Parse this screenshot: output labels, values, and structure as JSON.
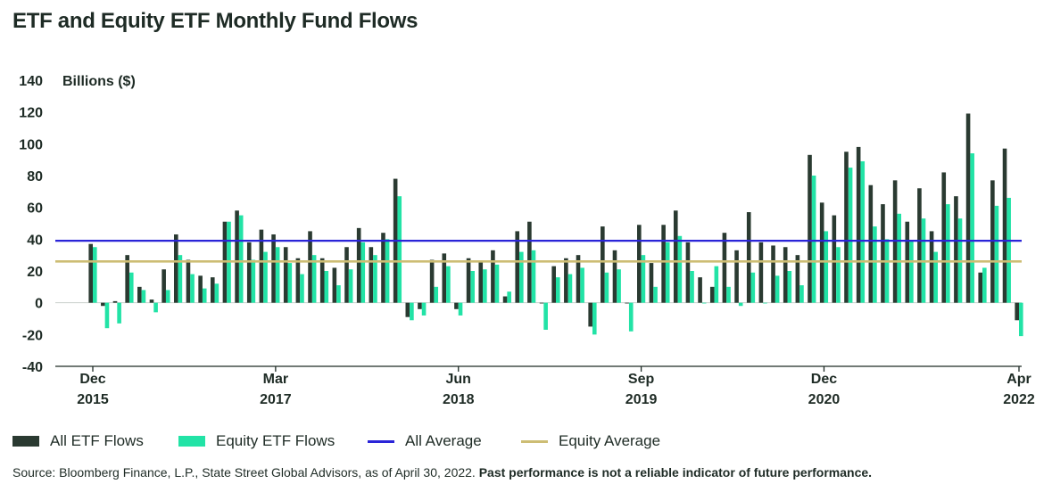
{
  "title": "ETF and Equity ETF Monthly Fund Flows",
  "footer": {
    "source": "Source: Bloomberg Finance, L.P., State Street Global Advisors, as of April 30, 2022.",
    "disclaimer": "Past performance is not a reliable indicator of future performance."
  },
  "colors": {
    "all_etf": "#2a3a31",
    "equity_etf": "#22e3a6",
    "all_average": "#2a24d8",
    "equity_average": "#cdbd74",
    "axis": "#1e2b25"
  },
  "chart_data": {
    "type": "bar",
    "ylabel": "Billions ($)",
    "ylim": [
      -40,
      140
    ],
    "yticks": [
      140,
      120,
      100,
      80,
      60,
      40,
      20,
      0,
      -20,
      -40
    ],
    "x_tick_labels": [
      {
        "month": "Dec",
        "year": "2015",
        "index": 0
      },
      {
        "month": "Mar",
        "year": "2017",
        "index": 15
      },
      {
        "month": "Jun",
        "year": "2018",
        "index": 30
      },
      {
        "month": "Sep",
        "year": "2019",
        "index": 45
      },
      {
        "month": "Dec",
        "year": "2020",
        "index": 60
      },
      {
        "month": "Apr",
        "year": "2022",
        "index": 76
      }
    ],
    "x_start": "Dec 2015",
    "x_end": "Apr 2022",
    "series": [
      {
        "name": "All ETF Flows",
        "values": [
          37,
          -2,
          1,
          30,
          10,
          2,
          21,
          43,
          27,
          17,
          16,
          51,
          58,
          38,
          46,
          43,
          35,
          28,
          45,
          28,
          22,
          35,
          47,
          35,
          44,
          78,
          -9,
          -4,
          27,
          31,
          -4,
          28,
          26,
          33,
          4,
          45,
          51,
          0,
          23,
          28,
          30,
          -15,
          48,
          33,
          0,
          49,
          25,
          49,
          58,
          38,
          16,
          10,
          44,
          33,
          57,
          38,
          36,
          35,
          30,
          93,
          63,
          55,
          95,
          98,
          74,
          62,
          77,
          51,
          72,
          45,
          82,
          67,
          119,
          19,
          77,
          97,
          -11
        ]
      },
      {
        "name": "Equity ETF Flows",
        "values": [
          35,
          -16,
          -13,
          19,
          8,
          -6,
          8,
          30,
          18,
          9,
          12,
          51,
          55,
          27,
          32,
          35,
          25,
          18,
          30,
          20,
          11,
          21,
          38,
          30,
          40,
          67,
          -11,
          -8,
          10,
          23,
          -8,
          20,
          21,
          24,
          7,
          32,
          33,
          -17,
          16,
          18,
          22,
          -20,
          19,
          21,
          -18,
          30,
          10,
          38,
          42,
          20,
          0,
          23,
          10,
          -2,
          19,
          0,
          17,
          20,
          11,
          80,
          45,
          35,
          85,
          89,
          48,
          40,
          56,
          39,
          53,
          32,
          62,
          53,
          94,
          22,
          61,
          66,
          -21
        ]
      },
      {
        "name": "All Average",
        "value": 39
      },
      {
        "name": "Equity Average",
        "value": 26
      }
    ],
    "legend_position": "bottom",
    "grid": false
  }
}
